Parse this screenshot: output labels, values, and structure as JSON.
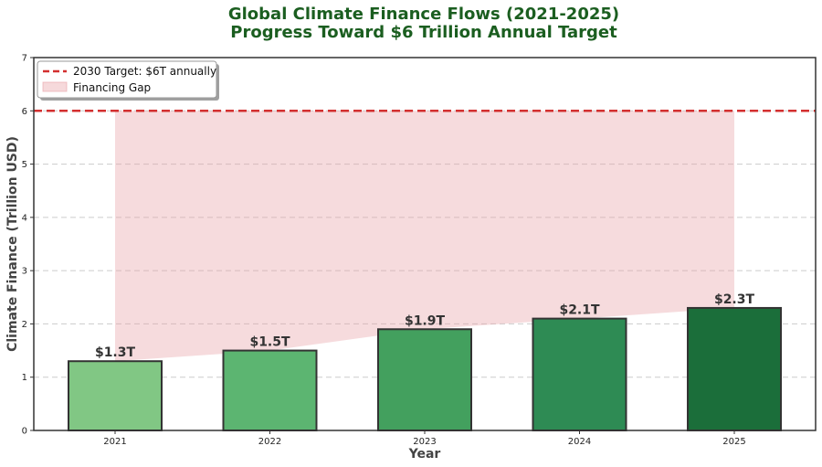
{
  "chart_data": {
    "type": "bar",
    "title": "Global Climate Finance Flows (2021-2025)",
    "subtitle": "Progress Toward $6 Trillion Annual Target",
    "xlabel": "Year",
    "ylabel": "Climate Finance (Trillion USD)",
    "categories": [
      "2021",
      "2022",
      "2023",
      "2024",
      "2025"
    ],
    "values": [
      1.3,
      1.5,
      1.9,
      2.1,
      2.3
    ],
    "bar_labels": [
      "$1.3T",
      "$1.5T",
      "$1.9T",
      "$2.1T",
      "$2.3T"
    ],
    "bar_colors": [
      "#81c784",
      "#5cb571",
      "#43a05e",
      "#2e8b54",
      "#1b6e3a"
    ],
    "ylim": [
      0,
      7
    ],
    "yticks": [
      "0",
      "1",
      "2",
      "3",
      "4",
      "5",
      "6",
      "7"
    ],
    "grid": true,
    "target": {
      "value": 6,
      "label": "2030 Target: $6T annually",
      "color": "#d32f2f"
    },
    "gap": {
      "label": "Financing Gap",
      "color": "#e8a0a5"
    },
    "legend_position": "top-left"
  }
}
